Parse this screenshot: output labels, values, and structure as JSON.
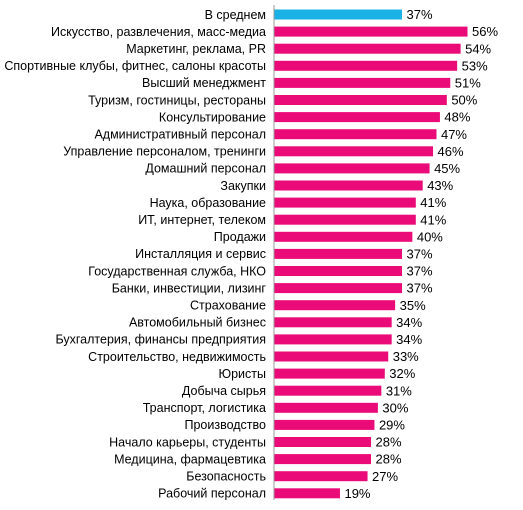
{
  "chart_data": {
    "type": "bar",
    "orientation": "horizontal",
    "categories": [
      "В среднем",
      "Искусство, развлечения, масс-медиа",
      "Маркетинг, реклама, PR",
      "Спортивные клубы, фитнес, салоны красоты",
      "Высший менеджмент",
      "Туризм, гостиницы, рестораны",
      "Консультирование",
      "Административный персонал",
      "Управление персоналом, тренинги",
      "Домашний персонал",
      "Закупки",
      "Наука, образование",
      "ИТ, интернет, телеком",
      "Продажи",
      "Инсталляция и сервис",
      "Государственная служба, НКО",
      "Банки, инвестиции, лизинг",
      "Страхование",
      "Автомобильный бизнес",
      "Бухгалтерия,  финансы предприятия",
      "Строительство, недвижимость",
      "Юристы",
      "Добыча сырья",
      "Транспорт, логистика",
      "Производство",
      "Начало карьеры, студенты",
      "Медицина, фармацевтика",
      "Безопасность",
      "Рабочий персонал"
    ],
    "values": [
      37,
      56,
      54,
      53,
      51,
      50,
      48,
      47,
      46,
      45,
      43,
      41,
      41,
      40,
      37,
      37,
      37,
      35,
      34,
      34,
      33,
      32,
      31,
      30,
      29,
      28,
      28,
      27,
      19
    ],
    "value_labels": [
      "37%",
      "56%",
      "54%",
      "53%",
      "51%",
      "50%",
      "48%",
      "47%",
      "46%",
      "45%",
      "43%",
      "41%",
      "41%",
      "40%",
      "37%",
      "37%",
      "37%",
      "35%",
      "34%",
      "34%",
      "33%",
      "32%",
      "31%",
      "30%",
      "29%",
      "28%",
      "28%",
      "27%",
      "19%"
    ],
    "highlight_index": 0,
    "colors": {
      "highlight": "#1ab2e6",
      "bar": "#ea0b79",
      "axis": "#9a9a9a"
    },
    "xlim": [
      0,
      56
    ],
    "grid": false,
    "legend": "none"
  }
}
